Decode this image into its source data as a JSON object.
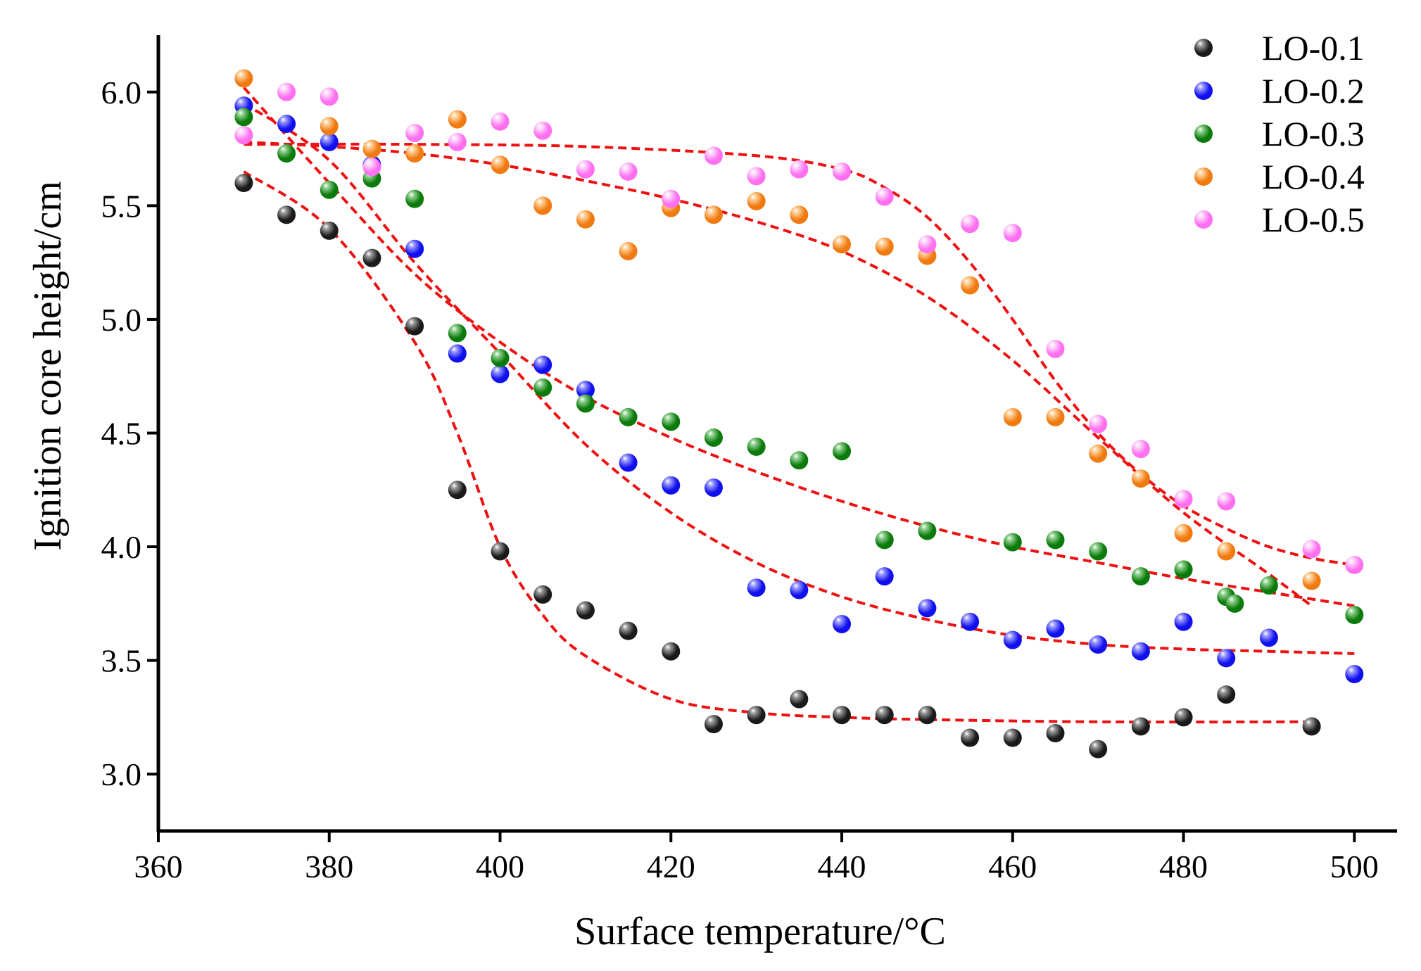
{
  "chart_data": {
    "type": "scatter",
    "title": "",
    "xlabel": "Surface temperature/°C",
    "ylabel": "Ignition core height/cm",
    "xlim": [
      360,
      505
    ],
    "ylim": [
      2.75,
      6.25
    ],
    "xticks": [
      360,
      380,
      400,
      420,
      440,
      460,
      480,
      500
    ],
    "yticks": [
      3.0,
      3.5,
      4.0,
      4.5,
      5.0,
      5.5,
      6.0
    ],
    "xtick_labels": [
      "360",
      "380",
      "400",
      "420",
      "440",
      "460",
      "480",
      "500"
    ],
    "ytick_labels": [
      "3.0",
      "3.5",
      "4.0",
      "4.5",
      "5.0",
      "5.5",
      "6.0"
    ],
    "grid": false,
    "legend_position": "top-right",
    "fit_color": "#ee1111",
    "series": [
      {
        "name": "LO-0.1",
        "color": "#1a1a1a",
        "highlight": "#9a9a9a",
        "x": [
          370,
          375,
          380,
          385,
          390,
          395,
          400,
          405,
          410,
          415,
          420,
          425,
          430,
          435,
          440,
          445,
          450,
          455,
          460,
          465,
          470,
          475,
          480,
          485,
          495
        ],
        "y": [
          5.6,
          5.46,
          5.39,
          5.27,
          4.97,
          4.25,
          3.98,
          3.79,
          3.72,
          3.63,
          3.54,
          3.22,
          3.26,
          3.33,
          3.26,
          3.26,
          3.26,
          3.16,
          3.16,
          3.18,
          3.11,
          3.21,
          3.25,
          3.35,
          3.21
        ],
        "fit": {
          "x": [
            370,
            380,
            390,
            395,
            400,
            405,
            410,
            420,
            430,
            440,
            450,
            470,
            495
          ],
          "y": [
            5.65,
            5.4,
            4.9,
            4.5,
            4.0,
            3.7,
            3.52,
            3.33,
            3.27,
            3.25,
            3.24,
            3.23,
            3.23
          ]
        }
      },
      {
        "name": "LO-0.2",
        "color": "#1010ee",
        "highlight": "#9a9aff",
        "x": [
          370,
          375,
          380,
          385,
          390,
          395,
          400,
          405,
          410,
          415,
          420,
          425,
          430,
          435,
          440,
          445,
          450,
          455,
          460,
          465,
          470,
          475,
          480,
          485,
          490,
          500
        ],
        "y": [
          5.94,
          5.86,
          5.78,
          5.68,
          5.31,
          4.85,
          4.76,
          4.8,
          4.69,
          4.37,
          4.27,
          4.26,
          3.82,
          3.81,
          3.66,
          3.87,
          3.73,
          3.67,
          3.59,
          3.64,
          3.57,
          3.54,
          3.67,
          3.51,
          3.6,
          3.44
        ],
        "fit": {
          "x": [
            370,
            380,
            390,
            400,
            410,
            420,
            430,
            440,
            450,
            460,
            470,
            480,
            490,
            500
          ],
          "y": [
            5.95,
            5.7,
            5.25,
            4.85,
            4.45,
            4.15,
            3.93,
            3.78,
            3.68,
            3.61,
            3.57,
            3.55,
            3.54,
            3.53
          ]
        }
      },
      {
        "name": "LO-0.3",
        "color": "#0a7a0a",
        "highlight": "#8fd08f",
        "x": [
          370,
          375,
          380,
          385,
          390,
          395,
          400,
          405,
          410,
          415,
          420,
          425,
          430,
          435,
          440,
          445,
          450,
          460,
          465,
          470,
          475,
          480,
          485,
          486,
          490,
          500
        ],
        "y": [
          5.89,
          5.73,
          5.57,
          5.62,
          5.53,
          4.94,
          4.83,
          4.7,
          4.63,
          4.57,
          4.55,
          4.48,
          4.44,
          4.38,
          4.42,
          4.03,
          4.07,
          4.02,
          4.03,
          3.98,
          3.87,
          3.9,
          3.78,
          3.75,
          3.83,
          3.7
        ],
        "fit": {
          "x": [
            370,
            380,
            390,
            400,
            410,
            420,
            430,
            440,
            450,
            460,
            470,
            480,
            490,
            500
          ],
          "y": [
            6.02,
            5.6,
            5.2,
            4.9,
            4.66,
            4.48,
            4.33,
            4.2,
            4.09,
            4.0,
            3.93,
            3.86,
            3.8,
            3.74
          ]
        }
      },
      {
        "name": "LO-0.4",
        "color": "#f07a10",
        "highlight": "#ffd19a",
        "x": [
          370,
          380,
          385,
          390,
          395,
          400,
          405,
          410,
          415,
          420,
          425,
          430,
          435,
          440,
          445,
          450,
          455,
          460,
          465,
          470,
          475,
          480,
          485,
          495
        ],
        "y": [
          6.06,
          5.85,
          5.75,
          5.73,
          5.88,
          5.68,
          5.5,
          5.44,
          5.3,
          5.49,
          5.46,
          5.52,
          5.46,
          5.33,
          5.32,
          5.28,
          5.15,
          4.57,
          4.57,
          4.41,
          4.3,
          4.06,
          3.98,
          3.85
        ],
        "fit": {
          "x": [
            370,
            380,
            390,
            400,
            410,
            420,
            430,
            440,
            450,
            460,
            470,
            480,
            490,
            495
          ],
          "y": [
            5.78,
            5.76,
            5.73,
            5.68,
            5.61,
            5.53,
            5.43,
            5.3,
            5.1,
            4.82,
            4.48,
            4.15,
            3.88,
            3.74
          ]
        }
      },
      {
        "name": "LO-0.5",
        "color": "#ff70f0",
        "highlight": "#ffd8fb",
        "x": [
          370,
          375,
          380,
          385,
          390,
          395,
          400,
          405,
          410,
          415,
          420,
          425,
          430,
          435,
          440,
          445,
          450,
          455,
          460,
          465,
          470,
          475,
          480,
          485,
          495,
          500
        ],
        "y": [
          5.81,
          6.0,
          5.98,
          5.67,
          5.82,
          5.78,
          5.87,
          5.83,
          5.66,
          5.65,
          5.53,
          5.72,
          5.63,
          5.66,
          5.65,
          5.54,
          5.33,
          5.42,
          5.38,
          4.87,
          4.54,
          4.43,
          4.21,
          4.2,
          3.99,
          3.92
        ],
        "fit": {
          "x": [
            370,
            390,
            410,
            430,
            440,
            445,
            450,
            455,
            460,
            465,
            470,
            475,
            480,
            485,
            490,
            495,
            500
          ],
          "y": [
            5.77,
            5.77,
            5.76,
            5.72,
            5.66,
            5.58,
            5.45,
            5.25,
            5.0,
            4.73,
            4.5,
            4.32,
            4.18,
            4.08,
            4.0,
            3.95,
            3.92
          ]
        }
      }
    ]
  }
}
